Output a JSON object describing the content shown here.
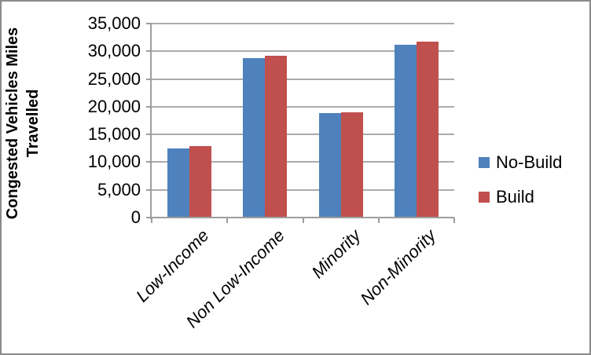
{
  "chart_data": {
    "type": "bar",
    "title": "",
    "xlabel": "",
    "ylabel": "Congested Vehicles Miles Travelled",
    "categories": [
      "Low-Income",
      "Non Low-Income",
      "Minority",
      "Non-Minority"
    ],
    "series": [
      {
        "name": "No-Build",
        "color": "#4F81BD",
        "values": [
          12400,
          28800,
          18800,
          31200
        ]
      },
      {
        "name": "Build",
        "color": "#C0504D",
        "values": [
          12900,
          29200,
          19000,
          31700
        ]
      }
    ],
    "ylim": [
      0,
      35000
    ],
    "ytick_step": 5000,
    "ytick_labels": [
      "0",
      "5,000",
      "10,000",
      "15,000",
      "20,000",
      "25,000",
      "30,000",
      "35,000"
    ],
    "grid": "horizontal",
    "gridline_color": "#ababab",
    "axis_color": "#9e9e9e",
    "legend_position": "right",
    "xtick_rotation_deg": -45
  }
}
